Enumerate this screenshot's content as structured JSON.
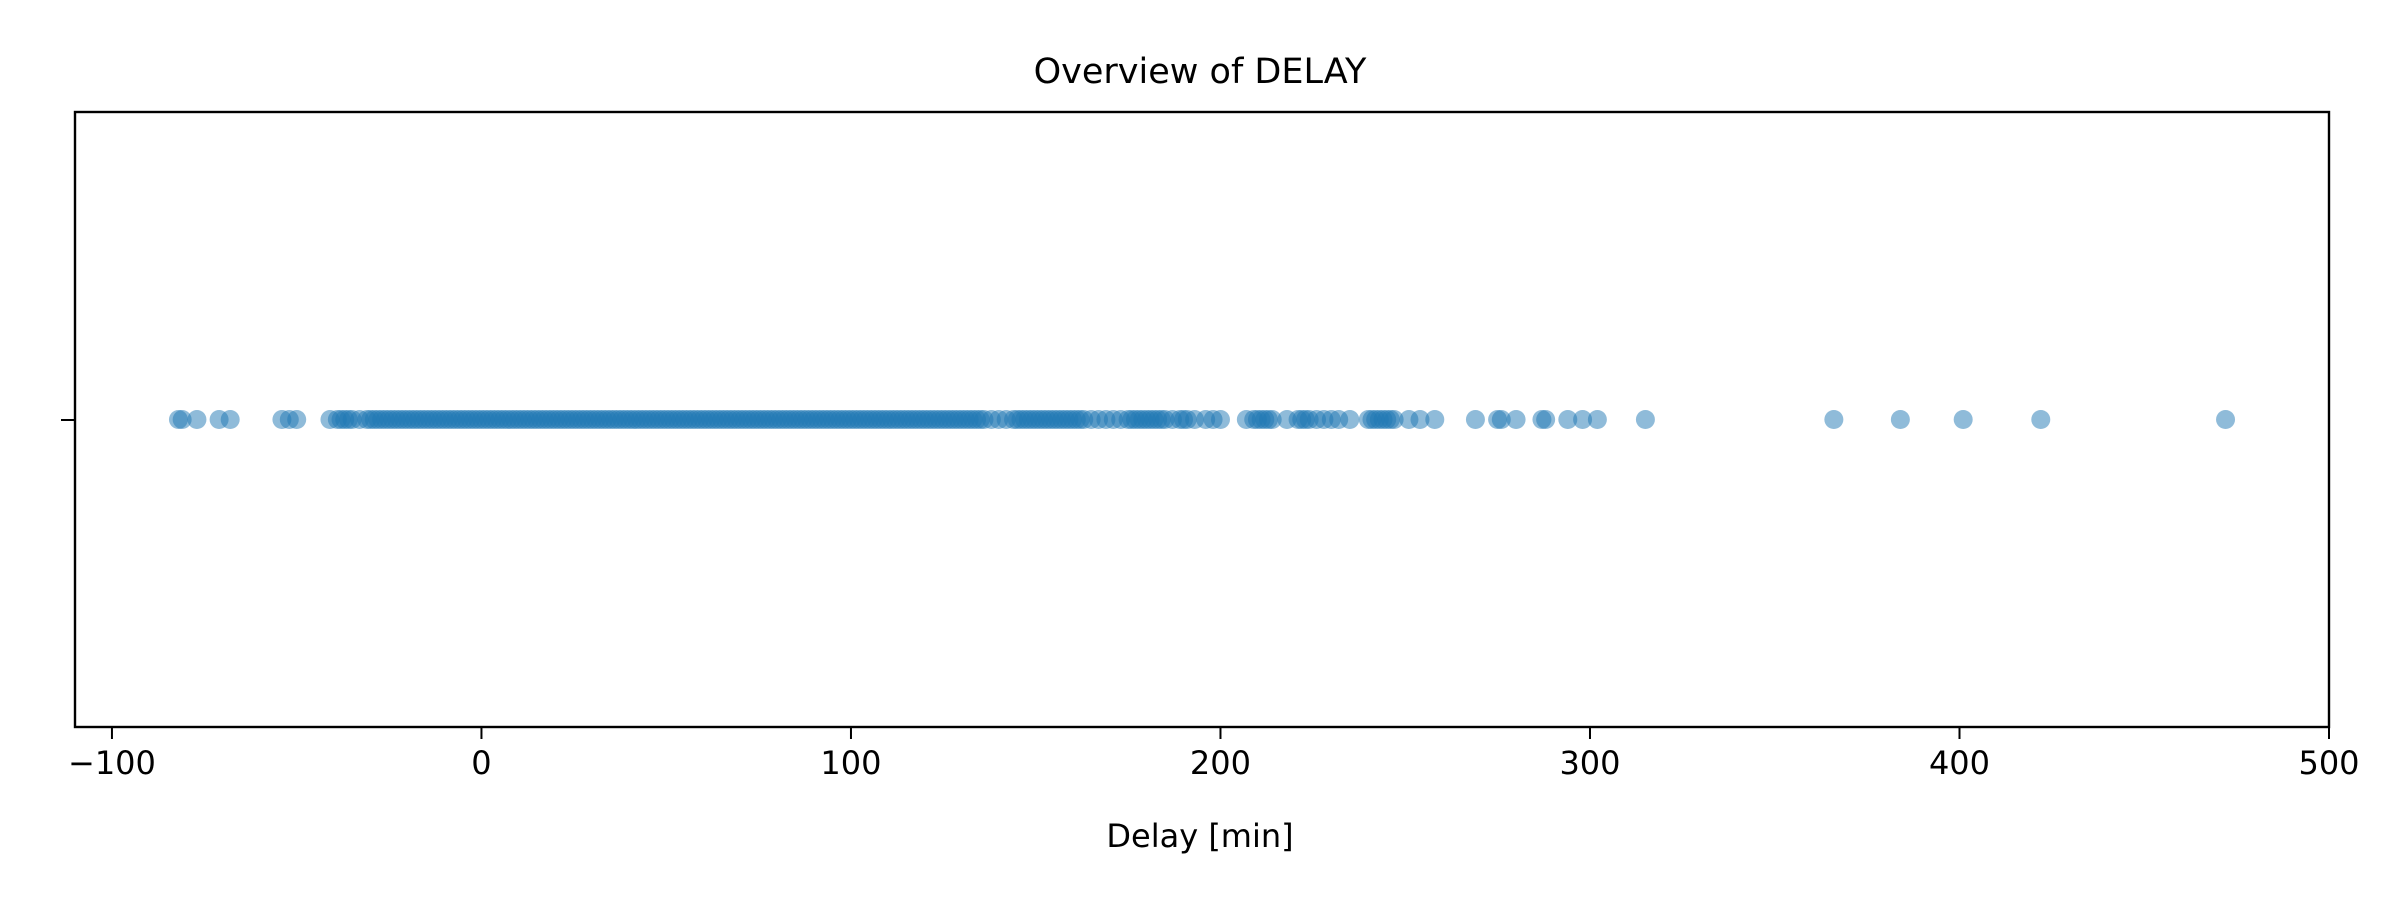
{
  "chart_data": {
    "type": "scatter",
    "title": "Overview of DELAY",
    "xlabel": "Delay [min]",
    "ylabel": "",
    "xlim": [
      -110,
      500
    ],
    "xticks": [
      -100,
      0,
      100,
      200,
      300,
      400,
      500
    ],
    "xtick_labels": [
      "−100",
      "0",
      "100",
      "200",
      "300",
      "400",
      "500"
    ],
    "yticks": [
      0
    ],
    "grid": false,
    "legend": "none",
    "marker_color": "#1f77b4",
    "marker_alpha": 0.5,
    "series": [
      {
        "x": [
          -82,
          -81,
          -77,
          -71,
          -68,
          -54,
          -52,
          -50,
          -41,
          -39,
          -38,
          -37,
          -36,
          -35,
          -33,
          -31,
          -30,
          -29,
          -28,
          -27,
          -26,
          -25,
          -24,
          -23,
          -22,
          -21,
          -20,
          -19,
          -18,
          -17,
          -16,
          -15,
          -14,
          -13,
          -12,
          -11,
          -10,
          -9,
          -8,
          -7,
          -6,
          -5,
          -4,
          -3,
          -2,
          -1,
          0,
          1,
          2,
          3,
          4,
          5,
          6,
          7,
          8,
          9,
          10,
          11,
          12,
          13,
          14,
          15,
          16,
          17,
          18,
          19,
          20,
          21,
          22,
          23,
          24,
          25,
          26,
          27,
          28,
          29,
          30,
          31,
          32,
          33,
          34,
          35,
          36,
          37,
          38,
          39,
          40,
          41,
          42,
          43,
          44,
          45,
          46,
          47,
          48,
          49,
          50,
          51,
          52,
          53,
          54,
          55,
          56,
          57,
          58,
          59,
          60,
          61,
          62,
          63,
          64,
          65,
          66,
          67,
          68,
          69,
          70,
          71,
          72,
          73,
          74,
          75,
          76,
          77,
          78,
          79,
          80,
          81,
          82,
          83,
          84,
          85,
          86,
          87,
          88,
          89,
          90,
          91,
          92,
          93,
          94,
          95,
          96,
          97,
          98,
          99,
          100,
          101,
          102,
          103,
          104,
          105,
          106,
          107,
          108,
          109,
          110,
          111,
          112,
          113,
          114,
          115,
          116,
          117,
          118,
          119,
          120,
          121,
          122,
          123,
          124,
          125,
          126,
          127,
          128,
          129,
          130,
          131,
          132,
          133,
          134,
          135,
          136,
          138,
          140,
          142,
          144,
          145,
          146,
          147,
          148,
          149,
          150,
          151,
          152,
          153,
          154,
          155,
          156,
          157,
          158,
          159,
          160,
          161,
          162,
          163,
          165,
          167,
          169,
          171,
          173,
          175,
          176,
          177,
          178,
          179,
          180,
          181,
          182,
          183,
          184,
          185,
          187,
          189,
          190,
          191,
          193,
          196,
          198,
          200,
          207,
          209,
          210,
          211,
          212,
          213,
          214,
          218,
          221,
          222,
          223,
          224,
          226,
          228,
          230,
          232,
          235,
          240,
          241,
          242,
          243,
          244,
          245,
          246,
          247,
          251,
          254,
          258,
          269,
          275,
          276,
          280,
          287,
          288,
          294,
          298,
          302,
          315,
          366,
          384,
          401,
          422,
          472
        ],
        "y": 0
      }
    ]
  }
}
